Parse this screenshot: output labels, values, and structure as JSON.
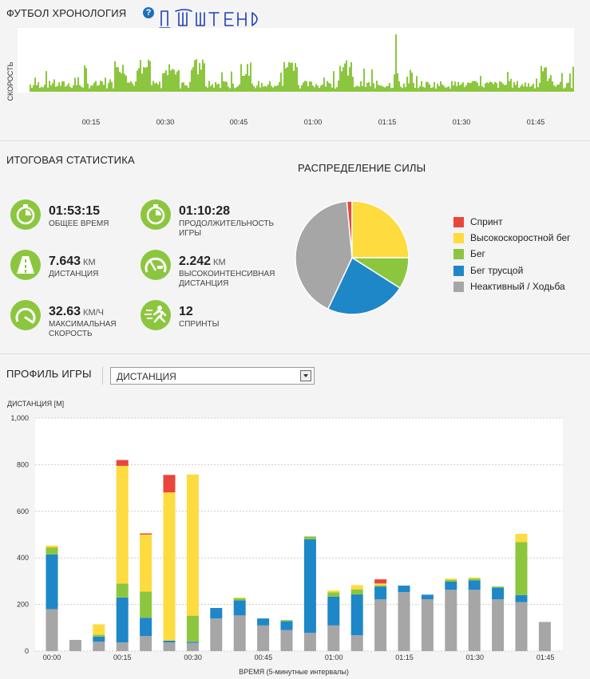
{
  "timeline": {
    "title": "ФУТБОЛ ХРОНОЛОГИЯ",
    "help_glyph": "?",
    "annotation": "Ш ШТЕНД",
    "ylabel": "СКОРОСТЬ",
    "ticks": [
      "00:15",
      "00:30",
      "00:45",
      "01:00",
      "01:15",
      "01:30",
      "01:45"
    ],
    "bar_color": "#8cc63f"
  },
  "summary": {
    "title": "ИТОГОВАЯ СТАТИСТИКА",
    "stats": [
      {
        "icon": "stopwatch-icon",
        "value": "01:53:15",
        "unit": "",
        "label": "ОБЩЕЕ ВРЕМЯ"
      },
      {
        "icon": "stopwatch-icon",
        "value": "01:10:28",
        "unit": "",
        "label": "ПРОДОЛЖИТЕЛЬНОСТЬ ИГРЫ"
      },
      {
        "icon": "road-icon",
        "value": "7.643",
        "unit": "КМ",
        "label": "ДИСТАНЦИЯ"
      },
      {
        "icon": "intensity-gauge-icon",
        "value": "2.242",
        "unit": "КМ",
        "label": "ВЫСОКОИНТЕНСИВНАЯ ДИСТАНЦИЯ"
      },
      {
        "icon": "speedometer-icon",
        "value": "32.63",
        "unit": "КМ/Ч",
        "label": "МАКСИМАЛЬНАЯ СКОРОСТЬ"
      },
      {
        "icon": "sprinter-icon",
        "value": "12",
        "unit": "",
        "label": "СПРИНТЫ"
      }
    ]
  },
  "power": {
    "title": "РАСПРЕДЕЛЕНИЕ СИЛЫ",
    "legend": [
      {
        "label": "Спринт",
        "color": "#e8463c"
      },
      {
        "label": "Высокоскоростной бег",
        "color": "#fedb3f"
      },
      {
        "label": "Бег",
        "color": "#8cc63f"
      },
      {
        "label": "Бег трусцой",
        "color": "#1e87c8"
      },
      {
        "label": "Неактивный / Ходьба",
        "color": "#a6a6a6"
      }
    ]
  },
  "profile": {
    "title": "ПРОФИЛЬ ИГРЫ",
    "dropdown_value": "ДИСТАНЦИЯ"
  },
  "chart_data": [
    {
      "type": "pie",
      "title": "РАСПРЕДЕЛЕНИЕ СИЛЫ",
      "labels": [
        "Спринт",
        "Высокоскоростной бег",
        "Бег",
        "Бег трусцой",
        "Неактивный / Ходьба"
      ],
      "values": [
        1.5,
        25,
        9,
        23,
        41.5
      ],
      "colors": [
        "#e8463c",
        "#fedb3f",
        "#8cc63f",
        "#1e87c8",
        "#a6a6a6"
      ],
      "legend": "right"
    },
    {
      "type": "bar",
      "stacked": true,
      "ylabel": "ДИСТАНЦИЯ [М]",
      "xlabel": "ВРЕМЯ (5-минутные интервалы)",
      "ylim": [
        0,
        1000
      ],
      "yticks": [
        "0",
        "200",
        "400",
        "600",
        "800",
        "1,000"
      ],
      "xticks": [
        "00:00",
        "00:15",
        "00:30",
        "00:45",
        "01:00",
        "01:15",
        "01:30",
        "01:45"
      ],
      "grid": true,
      "series_order": [
        "Неактивный / Ходьба",
        "Бег трусцой",
        "Бег",
        "Высокоскоростной бег",
        "Спринт"
      ],
      "colors": [
        "#a6a6a6",
        "#1e87c8",
        "#8cc63f",
        "#fedb3f",
        "#e8463c"
      ],
      "bars": [
        [
          180,
          235,
          30,
          8,
          0
        ],
        [
          48,
          0,
          0,
          0,
          0
        ],
        [
          40,
          22,
          8,
          45,
          0
        ],
        [
          37,
          193,
          60,
          505,
          25
        ],
        [
          65,
          78,
          112,
          245,
          5
        ],
        [
          37,
          8,
          0,
          636,
          75
        ],
        [
          35,
          5,
          112,
          606,
          0
        ],
        [
          140,
          45,
          0,
          0,
          0
        ],
        [
          153,
          65,
          8,
          4,
          0
        ],
        [
          110,
          30,
          0,
          0,
          0
        ],
        [
          90,
          38,
          5,
          0,
          0
        ],
        [
          78,
          402,
          12,
          0,
          0
        ],
        [
          110,
          124,
          18,
          8,
          0
        ],
        [
          68,
          175,
          22,
          18,
          0
        ],
        [
          222,
          55,
          5,
          8,
          18
        ],
        [
          253,
          28,
          0,
          0,
          0
        ],
        [
          222,
          20,
          0,
          0,
          0
        ],
        [
          263,
          35,
          8,
          5,
          0
        ],
        [
          263,
          40,
          8,
          5,
          0
        ],
        [
          222,
          50,
          5,
          0,
          0
        ],
        [
          210,
          30,
          228,
          35,
          0
        ],
        [
          125,
          0,
          0,
          0,
          0
        ]
      ]
    }
  ]
}
